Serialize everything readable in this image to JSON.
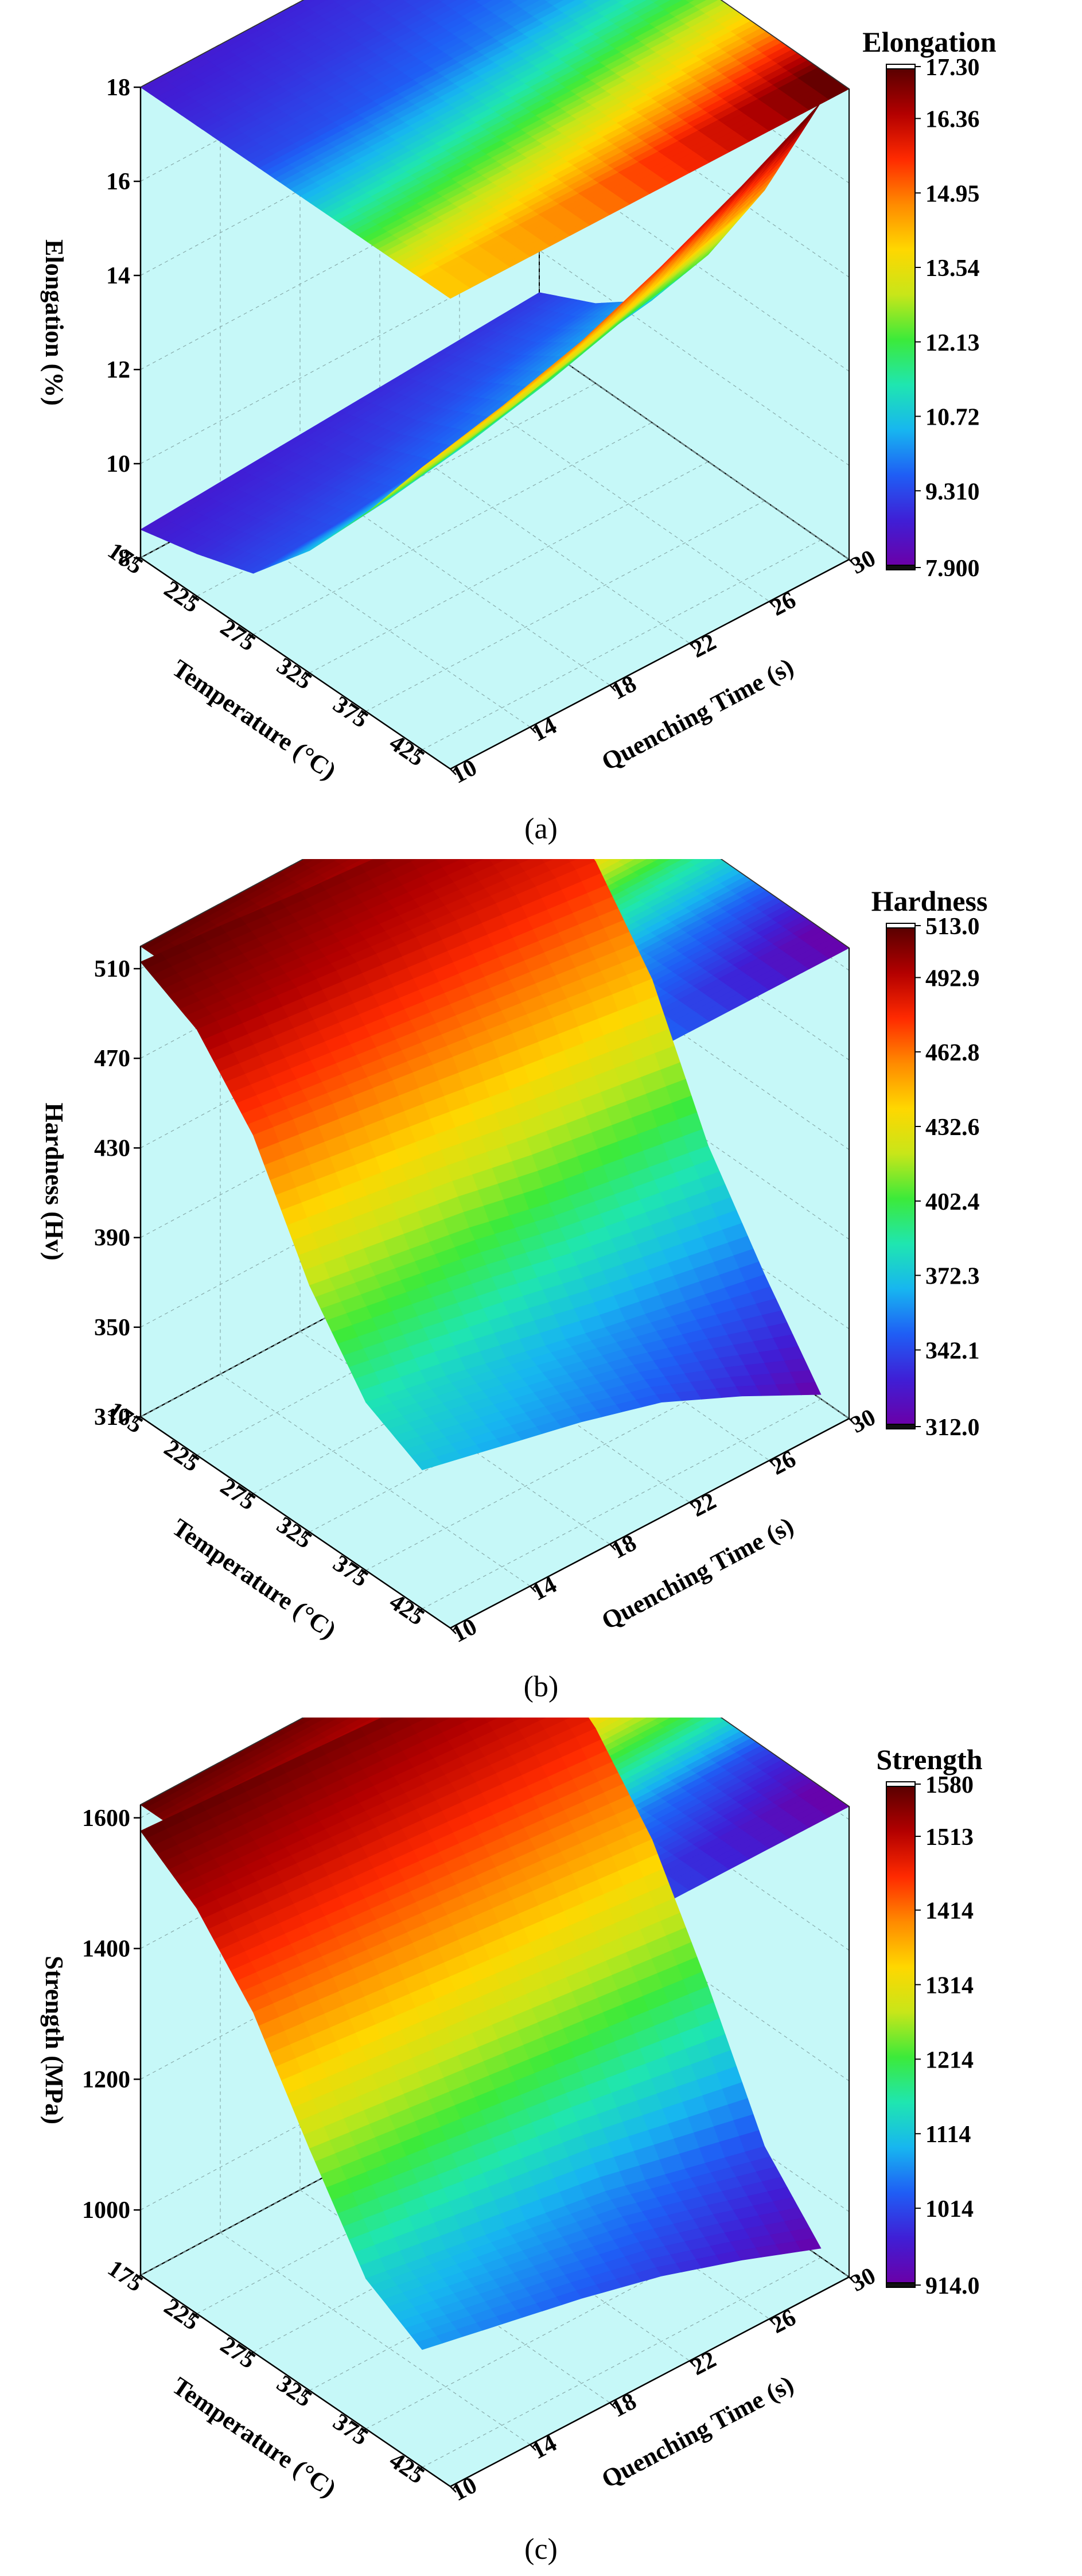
{
  "colormap": [
    "#6a00a8",
    "#3f1fd6",
    "#1f5ef5",
    "#17b6f0",
    "#1fe6b0",
    "#3cea3a",
    "#c8e619",
    "#ffd700",
    "#ff8a00",
    "#ff2a00",
    "#b30000",
    "#5a0000"
  ],
  "panel_bg": "#c6f8f8",
  "chart_data": [
    {
      "type": "surface3d",
      "caption": "(a)",
      "colorbar": {
        "title": "Elongation",
        "ticks": [
          "17.30",
          "16.36",
          "14.95",
          "13.54",
          "12.13",
          "10.72",
          "9.310",
          "7.900"
        ],
        "min": 7.9,
        "max": 17.3
      },
      "x": {
        "label": "Temperature (°C)",
        "ticks": [
          "175",
          "225",
          "275",
          "325",
          "375",
          "425"
        ],
        "range": [
          175,
          450
        ]
      },
      "y": {
        "label": "Quenching Time (s)",
        "ticks": [
          "10",
          "14",
          "18",
          "22",
          "26",
          "30"
        ],
        "range": [
          10,
          30
        ]
      },
      "z": {
        "label": "Elongation (%)",
        "ticks": [
          "8",
          "10",
          "12",
          "14",
          "16",
          "18"
        ],
        "range": [
          8,
          18
        ]
      },
      "x_values": [
        175,
        225,
        275,
        325,
        375,
        425
      ],
      "y_values": [
        10,
        14,
        18,
        22,
        26,
        30
      ],
      "z_values": [
        [
          8.6,
          8.9,
          9.3,
          10.6,
          12.2,
          14.0
        ],
        [
          8.7,
          9.0,
          9.4,
          10.8,
          12.5,
          14.4
        ],
        [
          8.8,
          9.1,
          9.6,
          11.1,
          12.9,
          14.9
        ],
        [
          8.9,
          9.3,
          9.9,
          11.5,
          13.4,
          15.6
        ],
        [
          9.0,
          9.5,
          10.3,
          12.0,
          14.0,
          16.4
        ],
        [
          9.1,
          9.7,
          10.6,
          12.4,
          14.6,
          17.3
        ]
      ]
    },
    {
      "type": "surface3d",
      "caption": "(b)",
      "colorbar": {
        "title": "Hardness",
        "ticks": [
          "513.0",
          "492.9",
          "462.8",
          "432.6",
          "402.4",
          "372.3",
          "342.1",
          "312.0"
        ],
        "min": 312.0,
        "max": 513.0
      },
      "x": {
        "label": "Temperature (°C)",
        "ticks": [
          "175",
          "225",
          "275",
          "325",
          "375",
          "425"
        ],
        "range": [
          175,
          450
        ]
      },
      "y": {
        "label": "Quenching Time (s)",
        "ticks": [
          "10",
          "14",
          "18",
          "22",
          "26",
          "30"
        ],
        "range": [
          10,
          30
        ]
      },
      "z": {
        "label": "Hardness (Hv)",
        "ticks": [
          "310",
          "350",
          "390",
          "430",
          "470",
          "510"
        ],
        "range": [
          310,
          520
        ]
      },
      "x_values": [
        175,
        225,
        275,
        325,
        375,
        425
      ],
      "y_values": [
        10,
        14,
        18,
        22,
        26,
        30
      ],
      "z_values": [
        [
          513,
          500,
          470,
          420,
          385,
          372
        ],
        [
          510,
          496,
          465,
          414,
          378,
          364
        ],
        [
          506,
          492,
          460,
          408,
          370,
          356
        ],
        [
          503,
          488,
          455,
          400,
          362,
          346
        ],
        [
          500,
          484,
          450,
          394,
          355,
          330
        ],
        [
          497,
          480,
          445,
          388,
          348,
          312
        ]
      ]
    },
    {
      "type": "surface3d",
      "caption": "(c)",
      "colorbar": {
        "title": "Strength",
        "ticks": [
          "1580",
          "1513",
          "1414",
          "1314",
          "1214",
          "1114",
          "1014",
          "914.0"
        ],
        "min": 914.0,
        "max": 1580
      },
      "x": {
        "label": "Temperature (°C)",
        "ticks": [
          "175",
          "225",
          "275",
          "325",
          "375",
          "425"
        ],
        "range": [
          175,
          450
        ]
      },
      "y": {
        "label": "Quenching Time (s)",
        "ticks": [
          "10",
          "14",
          "18",
          "22",
          "26",
          "30"
        ],
        "range": [
          10,
          30
        ]
      },
      "z": {
        "label": "Strength (MPa)",
        "ticks": [
          "1000",
          "1200",
          "1400",
          "1600"
        ],
        "range": [
          900,
          1620
        ]
      },
      "x_values": [
        175,
        225,
        275,
        325,
        375,
        425
      ],
      "y_values": [
        10,
        14,
        18,
        22,
        26,
        30
      ],
      "z_values": [
        [
          1580,
          1520,
          1420,
          1270,
          1130,
          1080
        ],
        [
          1572,
          1510,
          1408,
          1255,
          1110,
          1055
        ],
        [
          1564,
          1500,
          1396,
          1240,
          1090,
          1030
        ],
        [
          1556,
          1490,
          1384,
          1225,
          1070,
          1000
        ],
        [
          1548,
          1480,
          1372,
          1210,
          1040,
          960
        ],
        [
          1540,
          1470,
          1360,
          1195,
          1010,
          914
        ]
      ]
    }
  ]
}
